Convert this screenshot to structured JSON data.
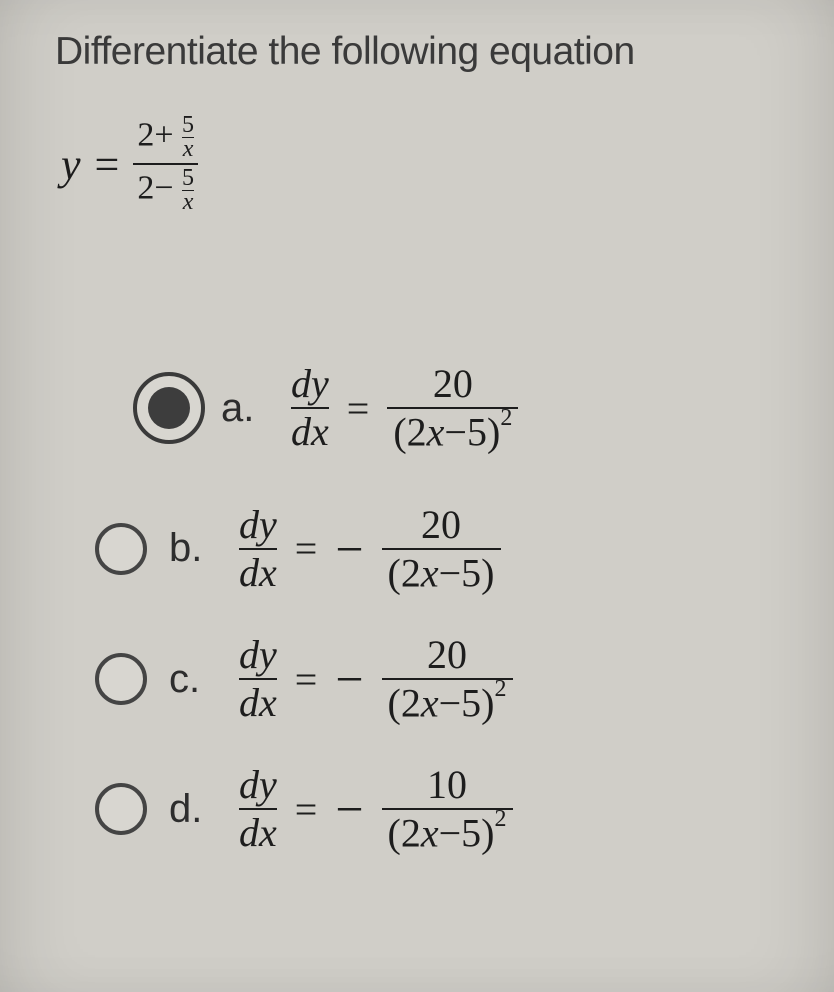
{
  "question": "Differentiate the following equation",
  "given": {
    "lhs": "y",
    "eq": "=",
    "num_whole": "2+",
    "den_whole": "2−",
    "small_num": "5",
    "small_den": "x"
  },
  "options": [
    {
      "letter": "a.",
      "selected": true,
      "dy": "dy",
      "dx": "dx",
      "eq": "=",
      "neg": "",
      "rhs_num": "20",
      "rhs_den_l": "(2",
      "rhs_den_x": "x",
      "rhs_den_r": "−5)",
      "rhs_exp": "2"
    },
    {
      "letter": "b.",
      "selected": false,
      "dy": "dy",
      "dx": "dx",
      "eq": "=",
      "neg": "−",
      "rhs_num": "20",
      "rhs_den_l": "(2",
      "rhs_den_x": "x",
      "rhs_den_r": "−5)",
      "rhs_exp": ""
    },
    {
      "letter": "c.",
      "selected": false,
      "dy": "dy",
      "dx": "dx",
      "eq": "=",
      "neg": "−",
      "rhs_num": "20",
      "rhs_den_l": "(2",
      "rhs_den_x": "x",
      "rhs_den_r": "−5)",
      "rhs_exp": "2"
    },
    {
      "letter": "d.",
      "selected": false,
      "dy": "dy",
      "dx": "dx",
      "eq": "=",
      "neg": "−",
      "rhs_num": "10",
      "rhs_den_l": "(2",
      "rhs_den_x": "x",
      "rhs_den_r": "−5)",
      "rhs_exp": "2"
    }
  ]
}
